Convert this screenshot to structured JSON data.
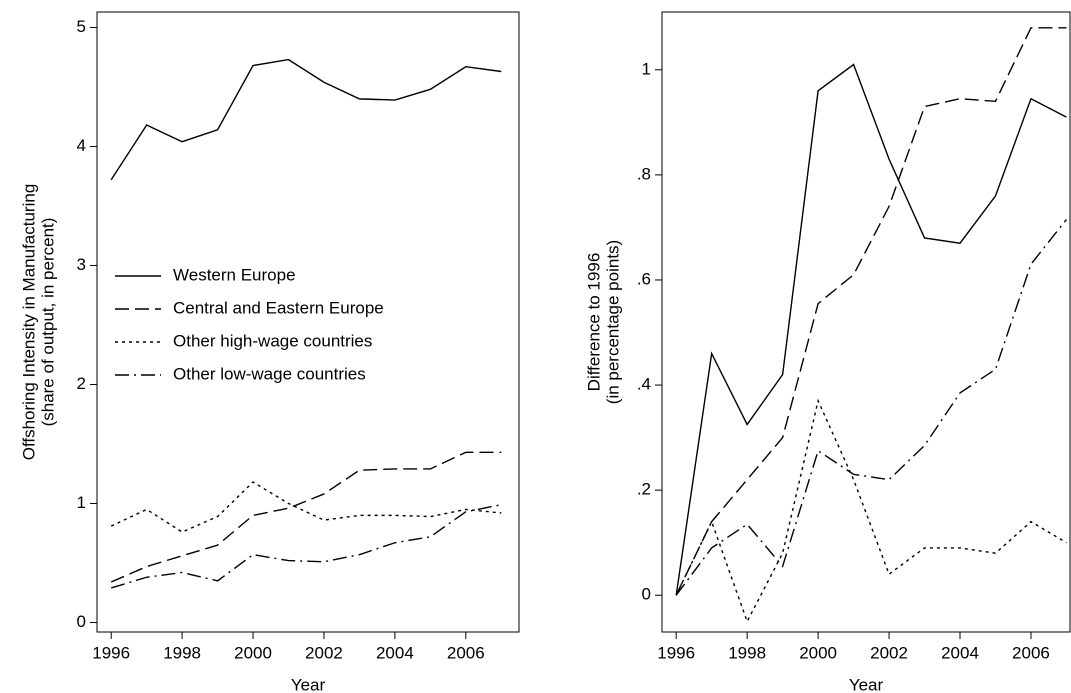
{
  "chart_data": [
    {
      "type": "line",
      "ylabel": [
        "Offshoring Intensity in Manufacturing",
        "(share of output, in percent)"
      ],
      "xlabel": "Year",
      "x": [
        1996,
        1997,
        1998,
        1999,
        2000,
        2001,
        2002,
        2003,
        2004,
        2005,
        2006,
        2007
      ],
      "xlim": [
        1995.6,
        2007.5
      ],
      "xticks": [
        1996,
        1998,
        2000,
        2002,
        2004,
        2006
      ],
      "ylim": [
        -0.08,
        5.13
      ],
      "yticks": [
        0,
        1,
        2,
        3,
        4,
        5
      ],
      "legend": "center-left",
      "series": [
        {
          "name": "Western Europe",
          "color": "#000000",
          "dash": "solid",
          "values": [
            3.72,
            4.18,
            4.04,
            4.14,
            4.68,
            4.73,
            4.54,
            4.4,
            4.39,
            4.48,
            4.67,
            4.63
          ]
        },
        {
          "name": "Central and Eastern Europe",
          "color": "#000000",
          "dash": "dashed",
          "values": [
            0.34,
            0.47,
            0.56,
            0.65,
            0.9,
            0.96,
            1.08,
            1.28,
            1.29,
            1.29,
            1.43,
            1.43
          ]
        },
        {
          "name": "Other high-wage countries",
          "color": "#000000",
          "dash": "dotted",
          "values": [
            0.81,
            0.95,
            0.76,
            0.89,
            1.18,
            1.0,
            0.86,
            0.9,
            0.9,
            0.89,
            0.95,
            0.92
          ]
        },
        {
          "name": "Other low-wage countries",
          "color": "#000000",
          "dash": "dashdot",
          "values": [
            0.29,
            0.38,
            0.42,
            0.35,
            0.57,
            0.52,
            0.51,
            0.57,
            0.67,
            0.72,
            0.93,
            0.99
          ]
        }
      ]
    },
    {
      "type": "line",
      "ylabel": [
        "Difference to 1996",
        "(in percentage points)"
      ],
      "xlabel": "Year",
      "x": [
        1996,
        1997,
        1998,
        1999,
        2000,
        2001,
        2002,
        2003,
        2004,
        2005,
        2006,
        2007
      ],
      "xlim": [
        1995.6,
        2007.1
      ],
      "xticks": [
        1996,
        1998,
        2000,
        2002,
        2004,
        2006
      ],
      "ylim": [
        -0.07,
        1.11
      ],
      "yticks": [
        0,
        {
          "value": 0.2,
          "label": ".2"
        },
        {
          "value": 0.4,
          "label": ".4"
        },
        {
          "value": 0.6,
          "label": ".6"
        },
        {
          "value": 0.8,
          "label": ".8"
        },
        1
      ],
      "series": [
        {
          "color": "#000000",
          "dash": "solid",
          "values": [
            0,
            0.46,
            0.325,
            0.42,
            0.96,
            1.01,
            0.83,
            0.68,
            0.67,
            0.76,
            0.945,
            0.91
          ]
        },
        {
          "color": "#000000",
          "dash": "dashed",
          "values": [
            0,
            0.14,
            0.22,
            0.3,
            0.555,
            0.61,
            0.74,
            0.93,
            0.945,
            0.94,
            1.08,
            1.08
          ]
        },
        {
          "color": "#000000",
          "dash": "dotted",
          "values": [
            0,
            0.14,
            -0.05,
            0.08,
            0.37,
            0.22,
            0.04,
            0.09,
            0.09,
            0.08,
            0.14,
            0.1
          ]
        },
        {
          "color": "#000000",
          "dash": "dashdot",
          "values": [
            0,
            0.09,
            0.135,
            0.055,
            0.275,
            0.23,
            0.22,
            0.285,
            0.385,
            0.43,
            0.63,
            0.715
          ]
        }
      ]
    }
  ]
}
